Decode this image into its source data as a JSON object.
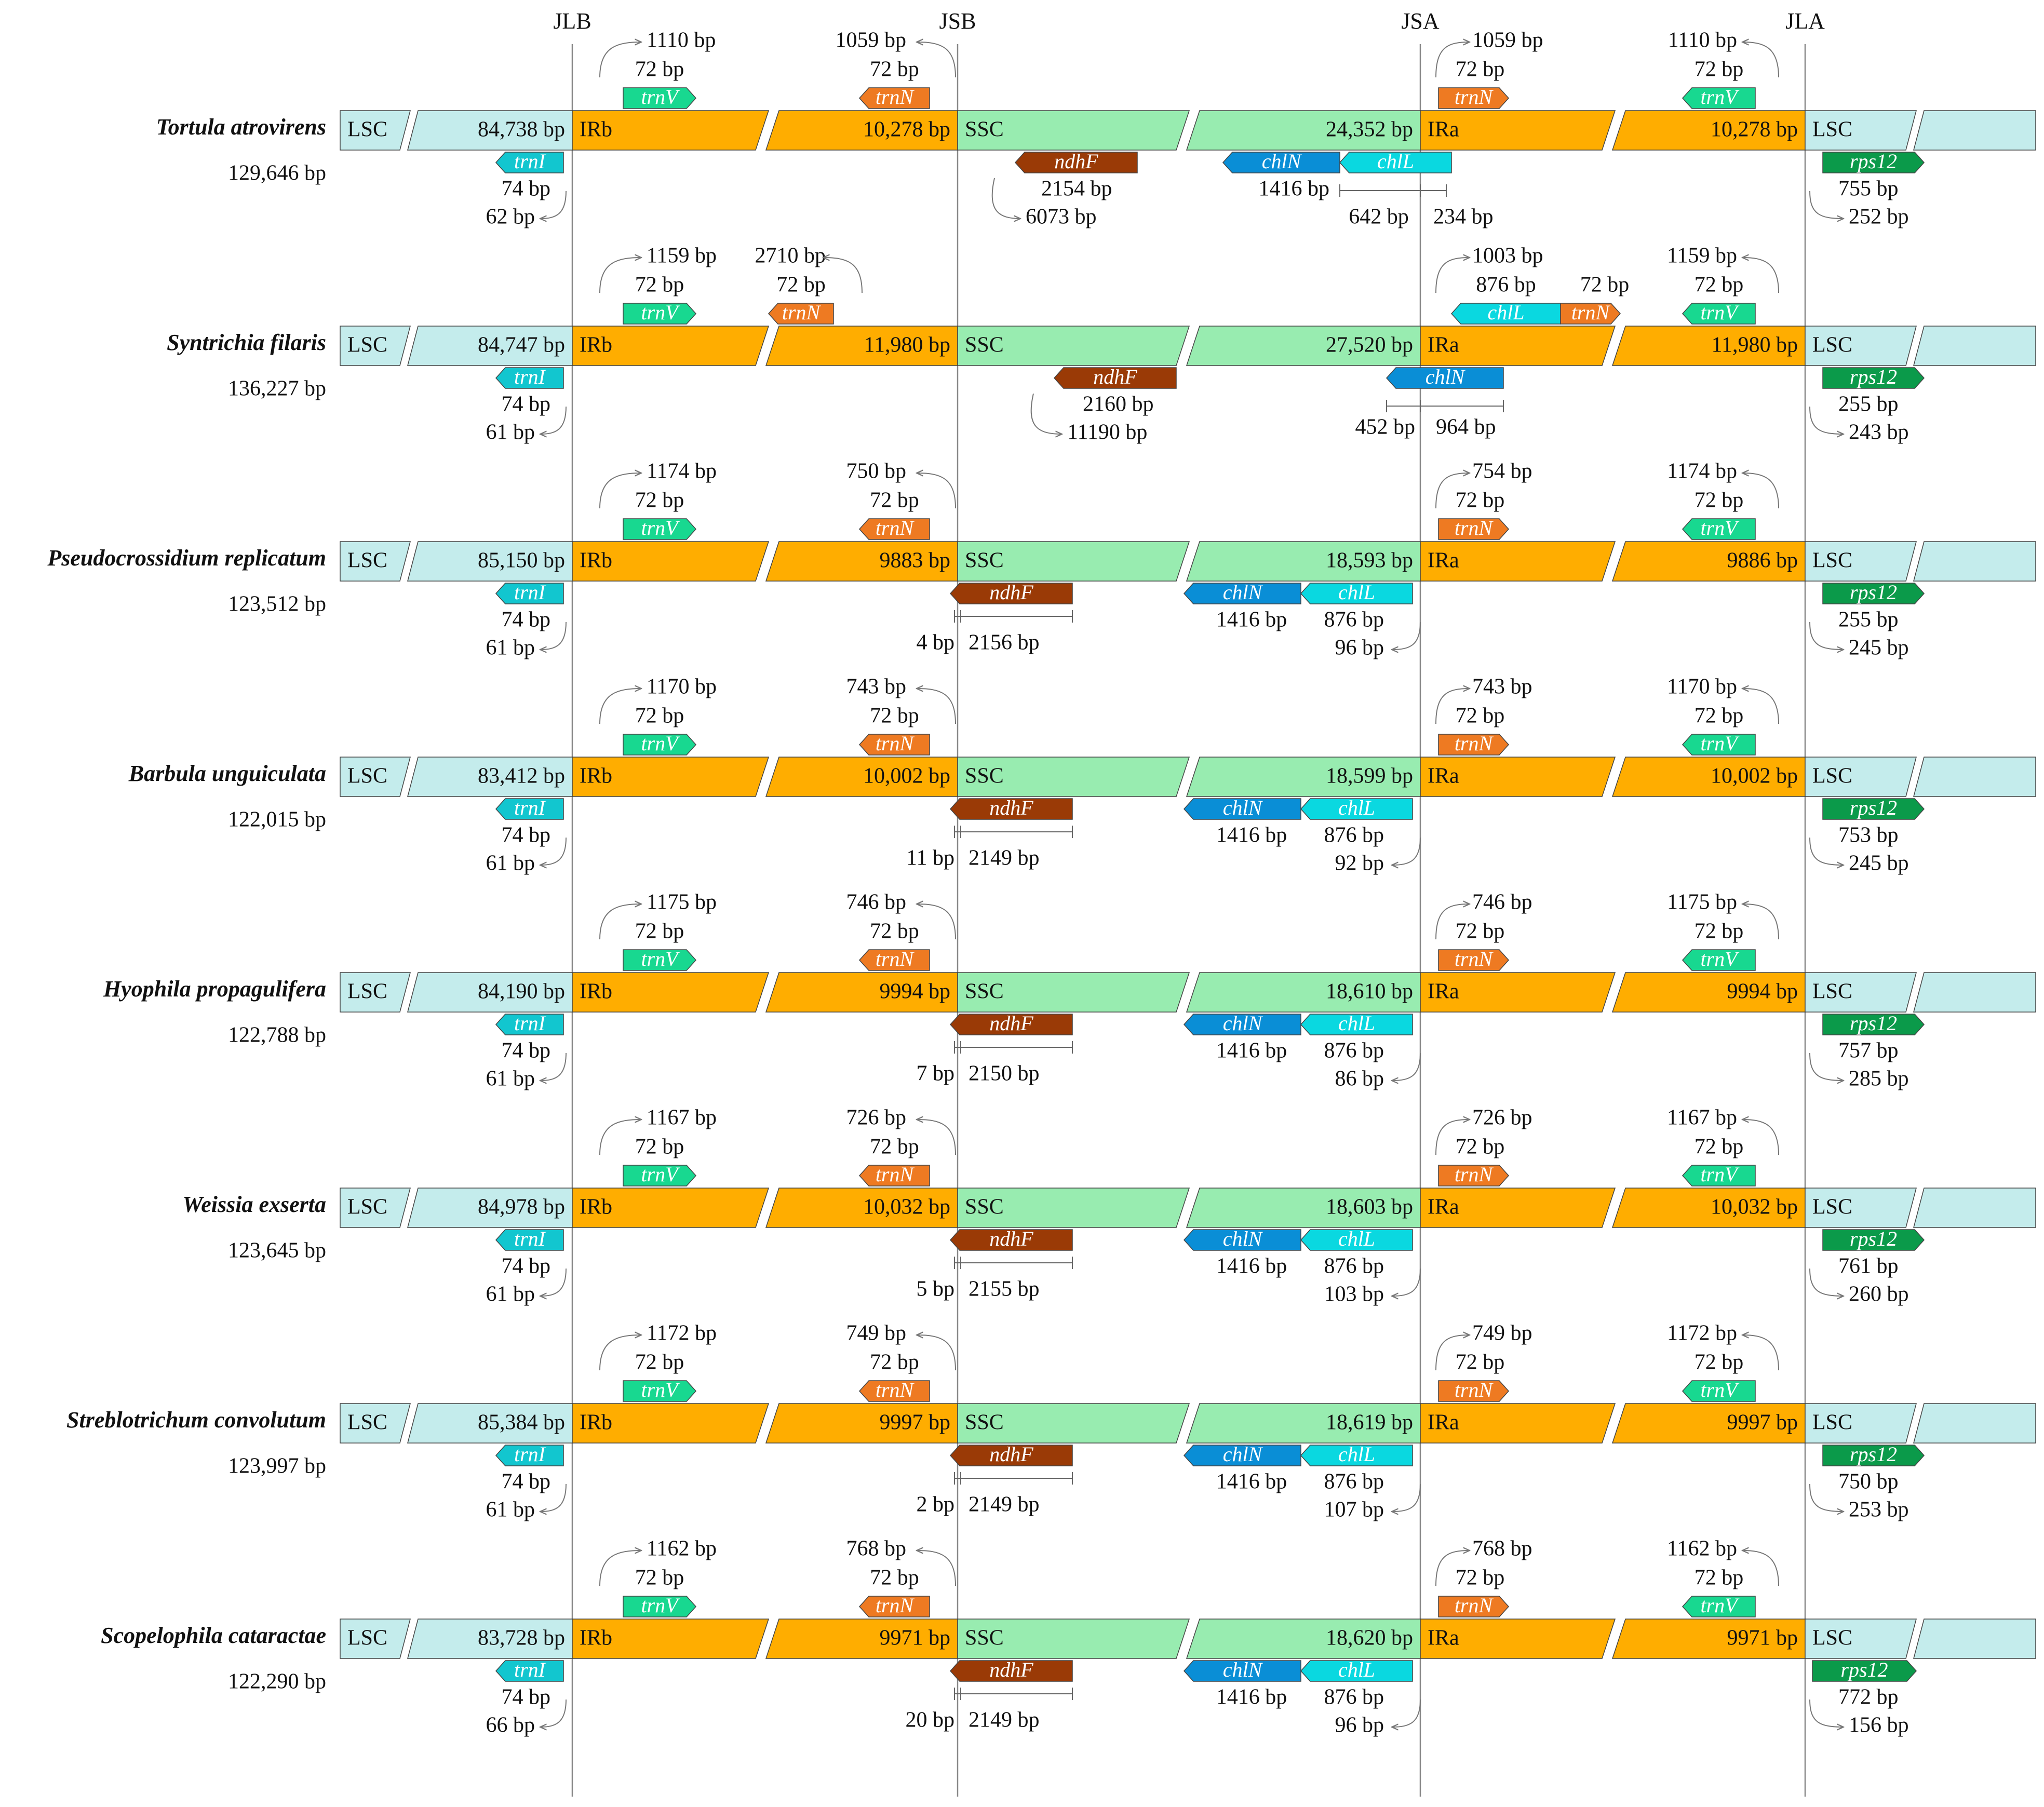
{
  "junctions": [
    "JLB",
    "JSB",
    "JSA",
    "JLA"
  ],
  "colors": {
    "lsc": "#c4ecec",
    "ir": "#ffad00",
    "ssc": "#98ecb0",
    "trnV": "#18d890",
    "trnN": "#ee7a22",
    "trnI": "#12c6cf",
    "ndhF": "#9a3a06",
    "chlN": "#0a8ed6",
    "chlL": "#0ad8e0",
    "rps12": "#0b9a4a",
    "outline": "#555555"
  },
  "species": [
    {
      "name": "Tortula atrovirens",
      "total": "129,646 bp",
      "lsc": "84,738 bp",
      "irb": "10,278 bp",
      "ssc": "24,352 bp",
      "ira": "10,278 bp",
      "labels": {
        "lsc": "LSC",
        "irb": "IRb",
        "ssc": "SSC",
        "ira": "IRa",
        "lsc2": "LSC"
      },
      "trnV_left": {
        "gene": "trnV",
        "total": "1110 bp",
        "seg": "72 bp"
      },
      "trnN_left": {
        "gene": "trnN",
        "total": "1059 bp",
        "seg": "72 bp"
      },
      "trnI": {
        "gene": "trnI",
        "a": "74 bp",
        "b": "62 bp"
      },
      "ndhF": {
        "gene": "ndhF",
        "a": "2154 bp",
        "b": "6073 bp"
      },
      "chlN": {
        "gene": "chlN",
        "a": "1416 bp"
      },
      "chlL": {
        "gene": "chlL",
        "a": "642 bp",
        "b": "234 bp"
      },
      "trnN_right": {
        "gene": "trnN",
        "total": "1059 bp",
        "seg": "72 bp"
      },
      "trnV_right": {
        "gene": "trnV",
        "total": "1110 bp",
        "seg": "72 bp"
      },
      "rps12": {
        "gene": "rps12",
        "a": "755 bp",
        "b": "252 bp"
      }
    },
    {
      "name": "Syntrichia filaris",
      "total": "136,227 bp",
      "lsc": "84,747 bp",
      "irb": "11,980 bp",
      "ssc": "27,520 bp",
      "ira": "11,980 bp",
      "labels": {
        "lsc": "LSC",
        "irb": "IRb",
        "ssc": "SSC",
        "ira": "IRa",
        "lsc2": "LSC"
      },
      "trnV_left": {
        "gene": "trnV",
        "total": "1159 bp",
        "seg": "72 bp"
      },
      "trnN_left": {
        "gene": "trnN",
        "total": "2710 bp",
        "seg": "72 bp"
      },
      "trnI": {
        "gene": "trnI",
        "a": "74 bp",
        "b": "61 bp"
      },
      "ndhF": {
        "gene": "ndhF",
        "a": "2160 bp",
        "b": "11190 bp"
      },
      "chlN": {
        "gene": "chlN",
        "a": "452 bp",
        "b": "964 bp"
      },
      "chlL": {
        "gene": "chlL",
        "total": "1003 bp",
        "a": "876 bp"
      },
      "trnN_right": {
        "gene": "trnN",
        "seg": "72 bp"
      },
      "trnV_right": {
        "gene": "trnV",
        "total": "1159 bp",
        "seg": "72 bp"
      },
      "rps12": {
        "gene": "rps12",
        "a": "255 bp",
        "b": "243 bp"
      }
    },
    {
      "name": "Pseudocrossidium replicatum",
      "total": "123,512 bp",
      "lsc": "85,150 bp",
      "irb": "9883 bp",
      "ssc": "18,593 bp",
      "ira": "9886 bp",
      "labels": {
        "lsc": "LSC",
        "irb": "IRb",
        "ssc": "SSC",
        "ira": "IRa",
        "lsc2": "LSC"
      },
      "trnV_left": {
        "gene": "trnV",
        "total": "1174 bp",
        "seg": "72 bp"
      },
      "trnN_left": {
        "gene": "trnN",
        "total": "750 bp",
        "seg": "72 bp"
      },
      "trnI": {
        "gene": "trnI",
        "a": "74 bp",
        "b": "61 bp"
      },
      "ndhF": {
        "gene": "ndhF",
        "a": "4 bp",
        "b": "2156 bp"
      },
      "chlN": {
        "gene": "chlN",
        "a": "1416 bp"
      },
      "chlL": {
        "gene": "chlL",
        "a": "876 bp",
        "b": "96 bp"
      },
      "trnN_right": {
        "gene": "trnN",
        "total": "754 bp",
        "seg": "72 bp"
      },
      "trnV_right": {
        "gene": "trnV",
        "total": "1174 bp",
        "seg": "72 bp"
      },
      "rps12": {
        "gene": "rps12",
        "a": "255 bp",
        "b": "245 bp"
      }
    },
    {
      "name": "Barbula unguiculata",
      "total": "122,015 bp",
      "lsc": "83,412 bp",
      "irb": "10,002 bp",
      "ssc": "18,599 bp",
      "ira": "10,002 bp",
      "labels": {
        "lsc": "LSC",
        "irb": "IRb",
        "ssc": "SSC",
        "ira": "IRa",
        "lsc2": "LSC"
      },
      "trnV_left": {
        "gene": "trnV",
        "total": "1170 bp",
        "seg": "72 bp"
      },
      "trnN_left": {
        "gene": "trnN",
        "total": "743 bp",
        "seg": "72 bp"
      },
      "trnI": {
        "gene": "trnI",
        "a": "74 bp",
        "b": "61 bp"
      },
      "ndhF": {
        "gene": "ndhF",
        "a": "11 bp",
        "b": "2149 bp"
      },
      "chlN": {
        "gene": "chlN",
        "a": "1416 bp"
      },
      "chlL": {
        "gene": "chlL",
        "a": "876 bp",
        "b": "92 bp"
      },
      "trnN_right": {
        "gene": "trnN",
        "total": "743 bp",
        "seg": "72 bp"
      },
      "trnV_right": {
        "gene": "trnV",
        "total": "1170 bp",
        "seg": "72 bp"
      },
      "rps12": {
        "gene": "rps12",
        "a": "753 bp",
        "b": "245 bp"
      }
    },
    {
      "name": "Hyophila propagulifera",
      "total": "122,788 bp",
      "lsc": "84,190 bp",
      "irb": "9994 bp",
      "ssc": "18,610 bp",
      "ira": "9994 bp",
      "labels": {
        "lsc": "LSC",
        "irb": "IRb",
        "ssc": "SSC",
        "ira": "IRa",
        "lsc2": "LSC"
      },
      "trnV_left": {
        "gene": "trnV",
        "total": "1175 bp",
        "seg": "72 bp"
      },
      "trnN_left": {
        "gene": "trnN",
        "total": "746 bp",
        "seg": "72 bp"
      },
      "trnI": {
        "gene": "trnI",
        "a": "74 bp",
        "b": "61 bp"
      },
      "ndhF": {
        "gene": "ndhF",
        "a": "7 bp",
        "b": "2150 bp"
      },
      "chlN": {
        "gene": "chlN",
        "a": "1416 bp"
      },
      "chlL": {
        "gene": "chlL",
        "a": "876 bp",
        "b": "86 bp"
      },
      "trnN_right": {
        "gene": "trnN",
        "total": "746 bp",
        "seg": "72 bp"
      },
      "trnV_right": {
        "gene": "trnV",
        "total": "1175 bp",
        "seg": "72 bp"
      },
      "rps12": {
        "gene": "rps12",
        "a": "757 bp",
        "b": "285 bp"
      }
    },
    {
      "name": "Weissia exserta",
      "total": "123,645 bp",
      "lsc": "84,978 bp",
      "irb": "10,032 bp",
      "ssc": "18,603 bp",
      "ira": "10,032 bp",
      "labels": {
        "lsc": "LSC",
        "irb": "IRb",
        "ssc": "SSC",
        "ira": "IRa",
        "lsc2": "LSC"
      },
      "trnV_left": {
        "gene": "trnV",
        "total": "1167 bp",
        "seg": "72 bp"
      },
      "trnN_left": {
        "gene": "trnN",
        "total": "726 bp",
        "seg": "72 bp"
      },
      "trnI": {
        "gene": "trnI",
        "a": "74 bp",
        "b": "61 bp"
      },
      "ndhF": {
        "gene": "ndhF",
        "a": "5 bp",
        "b": "2155 bp"
      },
      "chlN": {
        "gene": "chlN",
        "a": "1416 bp"
      },
      "chlL": {
        "gene": "chlL",
        "a": "876 bp",
        "b": "103 bp"
      },
      "trnN_right": {
        "gene": "trnN",
        "total": "726 bp",
        "seg": "72 bp"
      },
      "trnV_right": {
        "gene": "trnV",
        "total": "1167 bp",
        "seg": "72 bp"
      },
      "rps12": {
        "gene": "rps12",
        "a": "761 bp",
        "b": "260 bp"
      }
    },
    {
      "name": "Streblotrichum convolutum",
      "total": "123,997 bp",
      "lsc": "85,384 bp",
      "irb": "9997 bp",
      "ssc": "18,619 bp",
      "ira": "9997 bp",
      "labels": {
        "lsc": "LSC",
        "irb": "IRb",
        "ssc": "SSC",
        "ira": "IRa",
        "lsc2": "LSC"
      },
      "trnV_left": {
        "gene": "trnV",
        "total": "1172 bp",
        "seg": "72 bp"
      },
      "trnN_left": {
        "gene": "trnN",
        "total": "749 bp",
        "seg": "72 bp"
      },
      "trnI": {
        "gene": "trnI",
        "a": "74 bp",
        "b": "61 bp"
      },
      "ndhF": {
        "gene": "ndhF",
        "a": "2 bp",
        "b": "2149 bp"
      },
      "chlN": {
        "gene": "chlN",
        "a": "1416 bp"
      },
      "chlL": {
        "gene": "chlL",
        "a": "876 bp",
        "b": "107 bp"
      },
      "trnN_right": {
        "gene": "trnN",
        "total": "749 bp",
        "seg": "72 bp"
      },
      "trnV_right": {
        "gene": "trnV",
        "total": "1172 bp",
        "seg": "72 bp"
      },
      "rps12": {
        "gene": "rps12",
        "a": "750 bp",
        "b": "253 bp"
      }
    },
    {
      "name": "Scopelophila cataractae",
      "total": "122,290 bp",
      "lsc": "83,728 bp",
      "irb": "9971 bp",
      "ssc": "18,620 bp",
      "ira": "9971 bp",
      "labels": {
        "lsc": "LSC",
        "irb": "IRb",
        "ssc": "SSC",
        "ira": "IRa",
        "lsc2": "LSC"
      },
      "trnV_left": {
        "gene": "trnV",
        "total": "1162 bp",
        "seg": "72 bp"
      },
      "trnN_left": {
        "gene": "trnN",
        "total": "768 bp",
        "seg": "72 bp"
      },
      "trnI": {
        "gene": "trnI",
        "a": "74 bp",
        "b": "66 bp"
      },
      "ndhF": {
        "gene": "ndhF",
        "a": "20 bp",
        "b": "2149 bp"
      },
      "chlN": {
        "gene": "chlN",
        "a": "1416 bp"
      },
      "chlL": {
        "gene": "chlL",
        "a": "876 bp",
        "b": "96 bp"
      },
      "trnN_right": {
        "gene": "trnN",
        "total": "768 bp",
        "seg": "72 bp"
      },
      "trnV_right": {
        "gene": "trnV",
        "total": "1162 bp",
        "seg": "72 bp"
      },
      "rps12": {
        "gene": "rps12",
        "a": "772 bp",
        "b": "156 bp"
      }
    }
  ]
}
